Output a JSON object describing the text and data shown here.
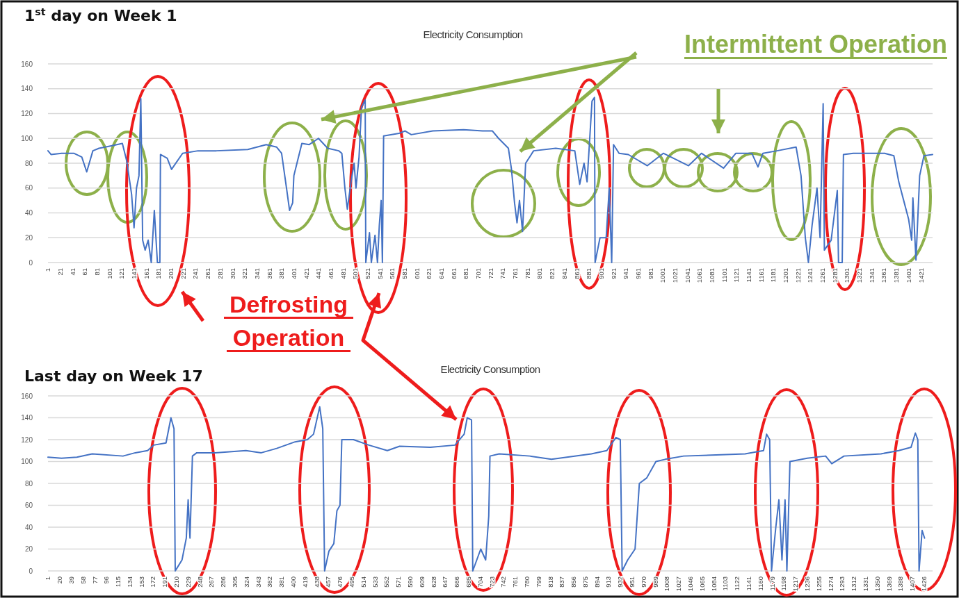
{
  "chart_data": [
    {
      "type": "line",
      "title": "Electricity Consumption",
      "annotations": [
        "1$^{st}$ day on Week 1",
        "Intermittent Operation",
        "Defrosting Operation"
      ],
      "x": [
        1,
        6,
        23,
        43,
        56,
        64,
        74,
        84,
        104,
        122,
        129,
        137,
        141,
        145,
        149,
        152,
        155,
        159,
        164,
        169,
        174,
        179,
        183,
        184,
        195,
        202,
        220,
        245,
        275,
        326,
        356,
        373,
        381,
        389,
        394,
        399,
        401,
        406,
        414,
        426,
        441,
        456,
        474,
        479,
        484,
        488,
        494,
        499,
        502,
        507,
        511,
        517,
        518,
        524,
        527,
        533,
        537,
        540,
        543,
        545,
        547,
        572,
        582,
        592,
        627,
        677,
        708,
        724,
        734,
        750,
        755,
        760,
        764,
        768,
        773,
        778,
        791,
        827,
        858,
        866,
        873,
        878,
        886,
        890,
        891,
        899,
        909,
        914,
        918,
        921,
        930,
        945,
        976,
        1002,
        1043,
        1064,
        1100,
        1120,
        1146,
        1156,
        1164,
        1187,
        1218,
        1226,
        1233,
        1238,
        1244,
        1252,
        1257,
        1262,
        1264,
        1275,
        1285,
        1287,
        1293,
        1295,
        1311,
        1362,
        1377,
        1385,
        1393,
        1401,
        1406,
        1408,
        1413,
        1419,
        1426,
        1440
      ],
      "series": [
        {
          "color": "#4472c4",
          "values": [
            90,
            87,
            88,
            88,
            85,
            73,
            90,
            92,
            94,
            96,
            82,
            55,
            28,
            60,
            70,
            132,
            18,
            10,
            18,
            0,
            42,
            0,
            0,
            87,
            84,
            75,
            88,
            90,
            90,
            91,
            95,
            93,
            88,
            60,
            42,
            48,
            70,
            80,
            96,
            95,
            100,
            92,
            90,
            88,
            60,
            43,
            65,
            80,
            60,
            85,
            125,
            131,
            0,
            24,
            0,
            22,
            0,
            30,
            50,
            0,
            102,
            104,
            106,
            103,
            106,
            107,
            106,
            106,
            100,
            92,
            75,
            48,
            32,
            50,
            25,
            80,
            90,
            92,
            90,
            63,
            80,
            65,
            130,
            133,
            0,
            20,
            20,
            60,
            0,
            95,
            88,
            87,
            78,
            88,
            78,
            88,
            76,
            88,
            88,
            77,
            88,
            90,
            93,
            70,
            20,
            0,
            30,
            60,
            20,
            128,
            10,
            18,
            58,
            0,
            0,
            87,
            88,
            88,
            86,
            65,
            50,
            35,
            18,
            52,
            2,
            70,
            86,
            87
          ]
        }
      ],
      "xlim": [
        1,
        1440
      ],
      "ylim": [
        0,
        160
      ],
      "yticks": [
        0,
        20,
        40,
        60,
        80,
        100,
        120,
        140,
        160
      ],
      "xticks": [
        1,
        21,
        41,
        61,
        81,
        101,
        121,
        141,
        161,
        181,
        201,
        221,
        241,
        261,
        281,
        301,
        321,
        341,
        361,
        381,
        401,
        421,
        441,
        461,
        481,
        501,
        521,
        541,
        561,
        581,
        601,
        621,
        641,
        661,
        681,
        701,
        721,
        741,
        761,
        781,
        801,
        821,
        841,
        861,
        881,
        901,
        921,
        941,
        961,
        981,
        1001,
        1021,
        1041,
        1061,
        1081,
        1101,
        1121,
        1141,
        1161,
        1181,
        1201,
        1221,
        1241,
        1261,
        1281,
        1301,
        1321,
        1341,
        1361,
        1381,
        1401,
        1421
      ],
      "grid": "y"
    },
    {
      "type": "line",
      "title": "Electricity Consumption",
      "annotations": [
        "Last day on Week 17"
      ],
      "x": [
        1,
        23,
        48,
        73,
        123,
        143,
        163,
        173,
        193,
        201,
        206,
        208,
        219,
        226,
        229,
        232,
        236,
        243,
        273,
        323,
        348,
        373,
        403,
        423,
        433,
        443,
        448,
        451,
        458,
        466,
        471,
        476,
        479,
        498,
        523,
        553,
        573,
        623,
        663,
        678,
        683,
        690,
        692,
        705,
        713,
        718,
        720,
        735,
        785,
        820,
        885,
        910,
        925,
        932,
        935,
        944,
        956,
        963,
        975,
        990,
        1005,
        1035,
        1135,
        1165,
        1170,
        1175,
        1178,
        1185,
        1190,
        1195,
        1200,
        1203,
        1208,
        1236,
        1266,
        1276,
        1296,
        1356,
        1385,
        1405,
        1412,
        1416,
        1418,
        1423,
        1427
      ],
      "series": [
        {
          "color": "#4472c4",
          "values": [
            104,
            103,
            104,
            107,
            105,
            108,
            110,
            115,
            117,
            140,
            130,
            0,
            10,
            30,
            65,
            30,
            105,
            108,
            108,
            110,
            108,
            112,
            118,
            120,
            125,
            150,
            130,
            0,
            18,
            25,
            55,
            60,
            120,
            120,
            115,
            110,
            114,
            113,
            115,
            125,
            140,
            138,
            0,
            20,
            10,
            50,
            105,
            107,
            105,
            102,
            107,
            110,
            122,
            120,
            0,
            10,
            20,
            80,
            85,
            100,
            102,
            105,
            107,
            110,
            125,
            120,
            0,
            40,
            65,
            10,
            65,
            0,
            100,
            103,
            105,
            98,
            105,
            107,
            110,
            113,
            126,
            120,
            0,
            37,
            30
          ]
        }
      ],
      "xlim": [
        1,
        1440
      ],
      "ylim": [
        0,
        160
      ],
      "yticks": [
        0,
        20,
        40,
        60,
        80,
        100,
        120,
        140,
        160
      ],
      "xticks": [
        1,
        20,
        39,
        58,
        77,
        96,
        115,
        134,
        153,
        172,
        191,
        210,
        229,
        248,
        267,
        286,
        305,
        324,
        343,
        362,
        381,
        400,
        419,
        438,
        457,
        476,
        495,
        514,
        533,
        552,
        571,
        590,
        609,
        628,
        647,
        666,
        685,
        704,
        723,
        742,
        761,
        780,
        799,
        818,
        837,
        856,
        875,
        894,
        913,
        932,
        951,
        970,
        989,
        1008,
        1027,
        1046,
        1065,
        1084,
        1103,
        1122,
        1141,
        1160,
        1179,
        1198,
        1217,
        1236,
        1255,
        1274,
        1293,
        1312,
        1331,
        1350,
        1369,
        1388,
        1407,
        1426
      ],
      "grid": "y"
    }
  ]
}
